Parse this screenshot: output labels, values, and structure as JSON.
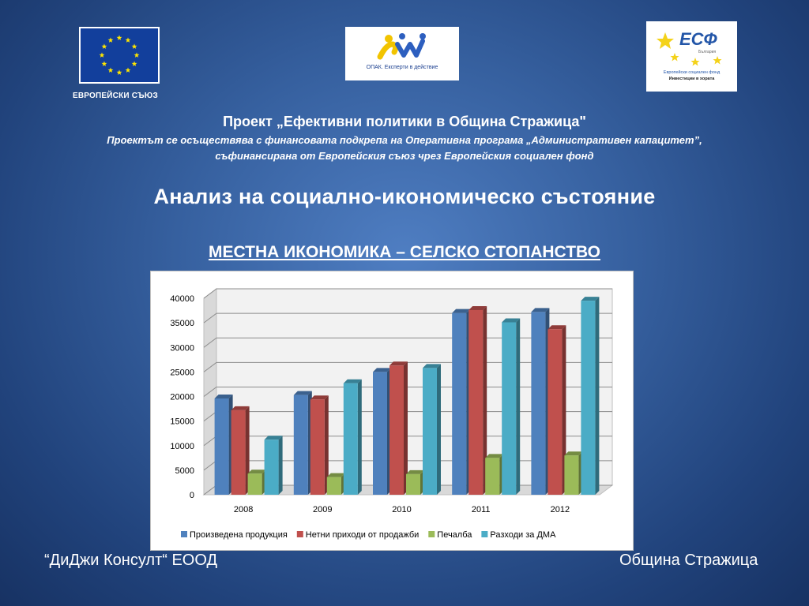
{
  "logos": {
    "eu_caption": "ЕВРОПЕЙСКИ СЪЮЗ",
    "opak_caption": "ОПАК. Експерти в действие",
    "esf_title": "ЕСФ",
    "esf_sub": "България",
    "esf_line1": "Европейски социален фонд",
    "esf_line2": "Инвестиции в хората"
  },
  "header": {
    "project_title": "Проект „Ефективни политики в Община Стражица\"",
    "project_sub1": "Проектът се осъществява с финансовата подкрепа на Оперативна програма „Административен капацитет”,",
    "project_sub2": "съфинансирана от Европейския съюз чрез Европейския социален фонд",
    "main_title": "Анализ на социално-икономическо състояние",
    "section_title": "МЕСТНА ИКОНОМИКА – СЕЛСКО СТОПАНСТВО"
  },
  "chart_data": {
    "type": "bar",
    "title": "",
    "categories": [
      "2008",
      "2009",
      "2010",
      "2011",
      "2012"
    ],
    "ylim": [
      0,
      40000
    ],
    "yticks": [
      0,
      5000,
      10000,
      15000,
      20000,
      25000,
      30000,
      35000,
      40000
    ],
    "grid": true,
    "legend_position": "bottom",
    "series": [
      {
        "name": "Произведена продукция",
        "color": "#4f81bd",
        "values": [
          19600,
          20300,
          25000,
          37000,
          37200
        ]
      },
      {
        "name": "Нетни приходи от продажби",
        "color": "#c0504d",
        "values": [
          17200,
          19400,
          26300,
          37600,
          33700
        ]
      },
      {
        "name": "Печалба",
        "color": "#9bbb59",
        "values": [
          4300,
          3600,
          4200,
          7500,
          8000
        ]
      },
      {
        "name": "Разходи за ДМА",
        "color": "#4bacc6",
        "values": [
          11200,
          22700,
          25800,
          35100,
          39500
        ]
      }
    ]
  },
  "footer": {
    "left": "“ДиДжи Консулт“ ЕООД",
    "right": "Община Стражица"
  }
}
